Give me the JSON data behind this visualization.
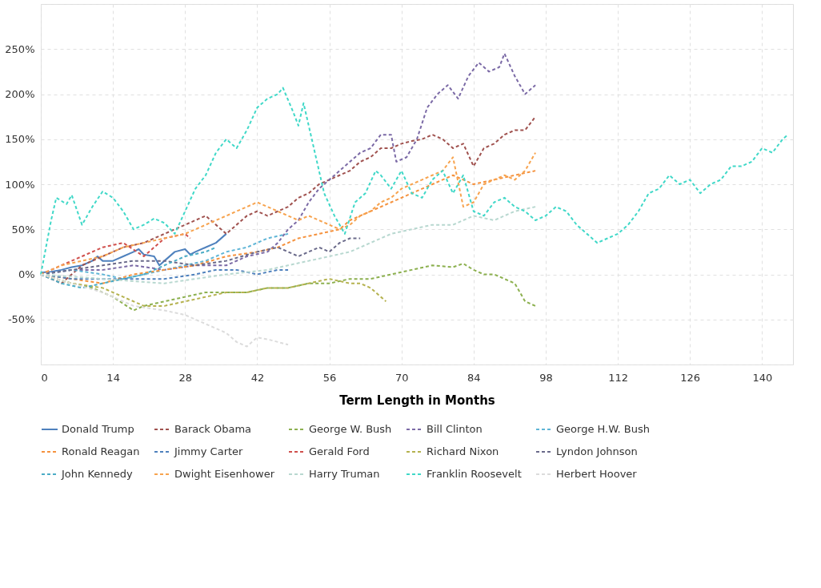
{
  "chart_data": {
    "type": "line",
    "xlabel": "Term Length in Months",
    "xlim": [
      0,
      146
    ],
    "xticks": [
      0,
      14,
      28,
      42,
      56,
      70,
      84,
      98,
      112,
      126,
      140
    ],
    "ylim": [
      -100,
      300
    ],
    "yticks": [
      {
        "value": -100,
        "label": null
      },
      {
        "value": -50,
        "label": "-50%"
      },
      {
        "value": 0,
        "label": "0%"
      },
      {
        "value": 50,
        "label": "50%"
      },
      {
        "value": 100,
        "label": "100%"
      },
      {
        "value": 150,
        "label": "150%"
      },
      {
        "value": 200,
        "label": "200%"
      },
      {
        "value": 250,
        "label": "250%"
      },
      {
        "value": 300,
        "label": null
      }
    ],
    "grid": true,
    "legend": "bottom",
    "marker": "none",
    "series": [
      {
        "name": "Donald Trump",
        "color": "#4f81bd",
        "line_style": "solid",
        "x": [
          0,
          2,
          4,
          6,
          8,
          10,
          11,
          12,
          14,
          16,
          18,
          19,
          20,
          22,
          23,
          24,
          26,
          28,
          29,
          30,
          32,
          34,
          36
        ],
        "values": [
          2,
          3,
          5,
          8,
          10,
          15,
          20,
          15,
          15,
          20,
          25,
          28,
          22,
          20,
          10,
          15,
          25,
          28,
          22,
          25,
          30,
          35,
          45
        ]
      },
      {
        "name": "Barack Obama",
        "color": "#a0524f",
        "line_style": "dashed",
        "x": [
          0,
          4,
          8,
          12,
          16,
          20,
          24,
          28,
          30,
          32,
          34,
          36,
          38,
          40,
          42,
          44,
          46,
          48,
          50,
          52,
          54,
          56,
          58,
          60,
          62,
          64,
          66,
          68,
          70,
          72,
          74,
          76,
          78,
          80,
          82,
          84,
          86,
          88,
          90,
          92,
          94,
          96
        ],
        "values": [
          0,
          -10,
          10,
          20,
          30,
          35,
          45,
          55,
          60,
          65,
          55,
          45,
          55,
          65,
          70,
          65,
          70,
          75,
          85,
          90,
          100,
          105,
          110,
          115,
          125,
          130,
          140,
          140,
          145,
          148,
          150,
          155,
          150,
          140,
          145,
          120,
          140,
          145,
          155,
          160,
          160,
          175
        ]
      },
      {
        "name": "George W. Bush",
        "color": "#8cb04f",
        "line_style": "dashed",
        "x": [
          0,
          6,
          10,
          14,
          18,
          20,
          24,
          28,
          32,
          36,
          40,
          44,
          48,
          52,
          56,
          60,
          64,
          68,
          72,
          76,
          80,
          82,
          84,
          86,
          88,
          90,
          92,
          94,
          96
        ],
        "values": [
          0,
          -10,
          -15,
          -25,
          -40,
          -35,
          -30,
          -25,
          -20,
          -20,
          -20,
          -15,
          -15,
          -10,
          -10,
          -5,
          -5,
          0,
          5,
          10,
          8,
          12,
          5,
          0,
          0,
          -5,
          -10,
          -30,
          -35
        ]
      },
      {
        "name": "Bill Clinton",
        "color": "#7b6aa6",
        "line_style": "dashed",
        "x": [
          0,
          6,
          12,
          18,
          24,
          30,
          36,
          40,
          44,
          46,
          48,
          50,
          52,
          54,
          56,
          58,
          60,
          62,
          64,
          66,
          68,
          69,
          71,
          73,
          75,
          77,
          79,
          81,
          83,
          85,
          87,
          89,
          90,
          92,
          94,
          96
        ],
        "values": [
          0,
          5,
          5,
          10,
          5,
          10,
          10,
          20,
          25,
          35,
          50,
          60,
          80,
          95,
          105,
          115,
          125,
          135,
          140,
          155,
          155,
          125,
          130,
          150,
          185,
          200,
          210,
          195,
          220,
          235,
          225,
          230,
          245,
          220,
          200,
          210
        ]
      },
      {
        "name": "George H.W. Bush",
        "color": "#5fb5d6",
        "line_style": "dashed",
        "x": [
          0,
          6,
          12,
          16,
          20,
          24,
          28,
          32,
          36,
          40,
          44,
          48
        ],
        "values": [
          0,
          5,
          0,
          -5,
          0,
          5,
          10,
          15,
          25,
          30,
          40,
          45
        ]
      },
      {
        "name": "Ronald Reagan",
        "color": "#f5923e",
        "line_style": "dashed",
        "x": [
          0,
          6,
          12,
          18,
          24,
          30,
          36,
          42,
          46,
          50,
          54,
          58,
          60,
          64,
          68,
          72,
          76,
          80,
          84,
          88,
          92,
          96
        ],
        "values": [
          0,
          -5,
          -10,
          0,
          5,
          10,
          20,
          25,
          30,
          40,
          45,
          50,
          60,
          70,
          80,
          90,
          100,
          110,
          100,
          105,
          110,
          115
        ]
      },
      {
        "name": "Jimmy Carter",
        "color": "#4f81bd",
        "line_style": "dashed",
        "x": [
          0,
          6,
          12,
          18,
          24,
          30,
          34,
          38,
          42,
          46,
          48
        ],
        "values": [
          0,
          -5,
          -5,
          -5,
          -5,
          0,
          5,
          5,
          0,
          5,
          5
        ]
      },
      {
        "name": "Gerald Ford",
        "color": "#d0504d",
        "line_style": "dashed",
        "x": [
          0,
          4,
          8,
          12,
          16,
          20,
          24,
          28,
          29
        ],
        "values": [
          0,
          10,
          20,
          30,
          35,
          20,
          40,
          45,
          40
        ]
      },
      {
        "name": "Richard Nixon",
        "color": "#b5b24f",
        "line_style": "dashed",
        "x": [
          0,
          6,
          12,
          16,
          20,
          24,
          28,
          32,
          36,
          40,
          44,
          48,
          52,
          56,
          60,
          62,
          64,
          66,
          67
        ],
        "values": [
          0,
          -10,
          -15,
          -25,
          -35,
          -35,
          -30,
          -25,
          -20,
          -20,
          -15,
          -15,
          -10,
          -5,
          -10,
          -10,
          -15,
          -25,
          -30
        ]
      },
      {
        "name": "Lyndon Johnson",
        "color": "#6a6a8a",
        "line_style": "dashed",
        "x": [
          0,
          6,
          12,
          18,
          24,
          30,
          36,
          42,
          46,
          48,
          50,
          52,
          54,
          56,
          58,
          60,
          62
        ],
        "values": [
          0,
          5,
          10,
          15,
          15,
          10,
          15,
          25,
          30,
          25,
          20,
          25,
          30,
          25,
          35,
          40,
          40
        ]
      },
      {
        "name": "John Kennedy",
        "color": "#4bacc6",
        "line_style": "dashed",
        "x": [
          0,
          4,
          8,
          12,
          16,
          20,
          24,
          28,
          32,
          34
        ],
        "values": [
          0,
          -10,
          -15,
          -10,
          -5,
          0,
          10,
          20,
          25,
          30
        ]
      },
      {
        "name": "Dwight Eisenhower",
        "color": "#f7a34e",
        "line_style": "dashed",
        "x": [
          0,
          4,
          8,
          12,
          16,
          20,
          24,
          28,
          32,
          36,
          40,
          42,
          44,
          46,
          48,
          50,
          52,
          54,
          56,
          58,
          60,
          62,
          64,
          66,
          68,
          70,
          72,
          74,
          76,
          78,
          80,
          82,
          84,
          86,
          88,
          90,
          92,
          94,
          96
        ],
        "values": [
          0,
          10,
          15,
          20,
          30,
          35,
          40,
          45,
          55,
          65,
          75,
          80,
          75,
          70,
          65,
          60,
          65,
          60,
          55,
          50,
          55,
          65,
          70,
          80,
          85,
          95,
          100,
          105,
          110,
          115,
          130,
          75,
          80,
          100,
          105,
          110,
          105,
          115,
          135
        ]
      },
      {
        "name": "Harry Truman",
        "color": "#b8d8d0",
        "line_style": "dashed",
        "x": [
          0,
          12,
          24,
          36,
          44,
          48,
          52,
          56,
          60,
          64,
          68,
          72,
          76,
          80,
          84,
          88,
          92,
          96
        ],
        "values": [
          0,
          -5,
          -10,
          0,
          5,
          10,
          15,
          20,
          25,
          35,
          45,
          50,
          55,
          55,
          65,
          60,
          70,
          75
        ]
      },
      {
        "name": "Franklin Roosevelt",
        "color": "#40d8c8",
        "line_style": "dashed",
        "x": [
          0,
          2,
          3,
          5,
          6,
          8,
          10,
          12,
          14,
          16,
          18,
          20,
          22,
          24,
          26,
          28,
          30,
          32,
          34,
          36,
          38,
          40,
          42,
          44,
          46,
          47,
          49,
          50,
          51,
          53,
          55,
          57,
          59,
          61,
          63,
          65,
          66,
          68,
          70,
          72,
          74,
          76,
          78,
          80,
          82,
          84,
          86,
          88,
          90,
          92,
          94,
          96,
          98,
          100,
          102,
          104,
          106,
          108,
          110,
          112,
          114,
          116,
          118,
          120,
          122,
          124,
          126,
          128,
          130,
          132,
          134,
          136,
          138,
          140,
          142,
          144,
          145
        ],
        "values": [
          0,
          60,
          85,
          78,
          88,
          55,
          75,
          92,
          85,
          70,
          50,
          55,
          62,
          57,
          45,
          70,
          95,
          110,
          135,
          150,
          140,
          160,
          185,
          195,
          200,
          207,
          180,
          165,
          190,
          140,
          90,
          65,
          45,
          80,
          90,
          115,
          110,
          95,
          115,
          90,
          85,
          105,
          115,
          90,
          110,
          70,
          65,
          80,
          85,
          75,
          70,
          60,
          65,
          75,
          70,
          55,
          45,
          35,
          40,
          45,
          55,
          70,
          90,
          95,
          110,
          100,
          105,
          90,
          100,
          105,
          120,
          120,
          125,
          140,
          135,
          150,
          155
        ]
      },
      {
        "name": "Herbert Hoover",
        "color": "#dcdcdc",
        "line_style": "dashed",
        "x": [
          0,
          6,
          12,
          18,
          24,
          28,
          32,
          36,
          38,
          40,
          42,
          44,
          46,
          48
        ],
        "values": [
          0,
          -10,
          -20,
          -35,
          -40,
          -45,
          -55,
          -65,
          -75,
          -80,
          -70,
          -72,
          -75,
          -78
        ]
      }
    ]
  }
}
